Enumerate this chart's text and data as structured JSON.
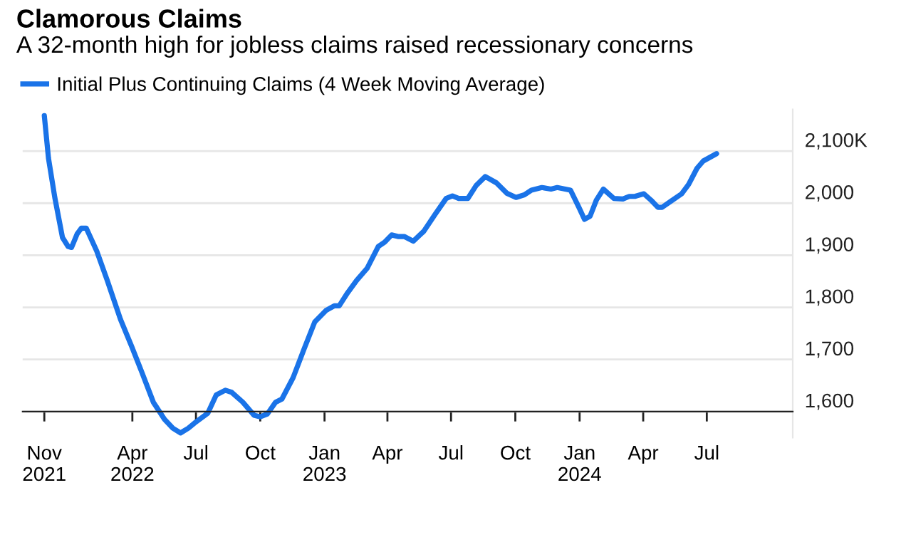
{
  "chart_data": {
    "type": "line",
    "title": "Clamorous Claims",
    "subtitle": "A 32-month high for jobless claims raised recessionary concerns",
    "x": [
      "2021-11-26",
      "2021-12-02",
      "2021-12-11",
      "2021-12-22",
      "2021-12-30",
      "2022-01-04",
      "2022-01-12",
      "2022-01-18",
      "2022-01-25",
      "2022-02-09",
      "2022-02-24",
      "2022-03-15",
      "2022-03-31",
      "2022-04-15",
      "2022-05-01",
      "2022-05-17",
      "2022-05-29",
      "2022-06-09",
      "2022-06-20",
      "2022-06-29",
      "2022-07-18",
      "2022-07-30",
      "2022-08-12",
      "2022-08-21",
      "2022-09-06",
      "2022-09-22",
      "2022-10-01",
      "2022-10-11",
      "2022-10-23",
      "2022-11-01",
      "2022-11-17",
      "2022-12-03",
      "2022-12-18",
      "2023-01-03",
      "2023-01-15",
      "2023-01-22",
      "2023-02-03",
      "2023-02-16",
      "2023-03-03",
      "2023-03-19",
      "2023-03-28",
      "2023-04-07",
      "2023-04-16",
      "2023-04-25",
      "2023-05-08",
      "2023-05-19",
      "2023-05-23",
      "2023-06-08",
      "2023-06-24",
      "2023-07-03",
      "2023-07-12",
      "2023-07-25",
      "2023-08-06",
      "2023-08-19",
      "2023-09-04",
      "2023-09-19",
      "2023-10-02",
      "2023-10-14",
      "2023-10-24",
      "2023-11-08",
      "2023-11-21",
      "2023-11-30",
      "2023-12-19",
      "2023-12-31",
      "2024-01-08",
      "2024-01-16",
      "2024-01-25",
      "2024-02-04",
      "2024-02-19",
      "2024-03-03",
      "2024-03-12",
      "2024-03-20",
      "2024-04-02",
      "2024-04-12",
      "2024-04-22",
      "2024-04-28",
      "2024-05-11",
      "2024-05-26",
      "2024-06-05",
      "2024-06-17",
      "2024-06-26",
      "2024-07-15"
    ],
    "series": [
      {
        "name": "Initial Plus Continuing Claims (4 Week Moving Average)",
        "color": "#1a73e8",
        "values": [
          2168,
          2086,
          2011,
          1934,
          1917,
          1915,
          1941,
          1952,
          1952,
          1908,
          1852,
          1777,
          1725,
          1674,
          1618,
          1585,
          1568,
          1559,
          1568,
          1578,
          1597,
          1632,
          1641,
          1637,
          1618,
          1593,
          1590,
          1595,
          1618,
          1624,
          1665,
          1721,
          1772,
          1794,
          1803,
          1803,
          1828,
          1852,
          1875,
          1917,
          1925,
          1939,
          1936,
          1936,
          1927,
          1941,
          1946,
          1978,
          2009,
          2014,
          2009,
          2009,
          2034,
          2051,
          2039,
          2019,
          2011,
          2016,
          2025,
          2030,
          2027,
          2030,
          2025,
          1992,
          1969,
          1975,
          2006,
          2027,
          2009,
          2008,
          2013,
          2013,
          2018,
          2006,
          1992,
          1992,
          2004,
          2018,
          2036,
          2067,
          2081,
          2095
        ]
      }
    ],
    "xlim": [
      "2021-10-26",
      "2024-11-01"
    ],
    "xticks": [
      {
        "value": "2021-11-26",
        "label": "Nov\n2021"
      },
      {
        "value": "2022-04-01",
        "label": "Apr\n2022"
      },
      {
        "value": "2022-07-01",
        "label": "Jul"
      },
      {
        "value": "2022-10-01",
        "label": "Oct"
      },
      {
        "value": "2023-01-01",
        "label": "Jan\n2023"
      },
      {
        "value": "2023-04-01",
        "label": "Apr"
      },
      {
        "value": "2023-07-01",
        "label": "Jul"
      },
      {
        "value": "2023-10-01",
        "label": "Oct"
      },
      {
        "value": "2024-01-01",
        "label": "Jan\n2024"
      },
      {
        "value": "2024-04-01",
        "label": "Apr"
      },
      {
        "value": "2024-07-01",
        "label": "Jul"
      }
    ],
    "ylim": [
      1550,
      2180
    ],
    "yticks": [
      {
        "value": 1600,
        "label": "1,600"
      },
      {
        "value": 1700,
        "label": "1,700"
      },
      {
        "value": 1800,
        "label": "1,800"
      },
      {
        "value": 1900,
        "label": "1,900"
      },
      {
        "value": 2000,
        "label": "2,000"
      },
      {
        "value": 2100,
        "label": "2,100K"
      }
    ],
    "grid": "y",
    "legend": "top left",
    "line_style": "solid",
    "marker": "none"
  }
}
